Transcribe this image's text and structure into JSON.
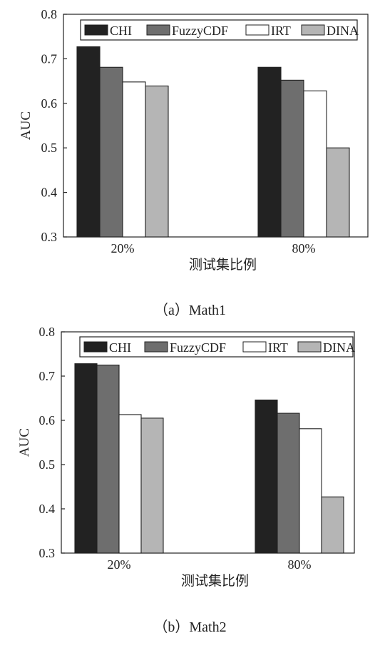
{
  "legend": {
    "items": [
      {
        "label": "CHI",
        "color": "#222222"
      },
      {
        "label": "FuzzyCDF",
        "color": "#6e6e6e"
      },
      {
        "label": "IRT",
        "color": "#ffffff"
      },
      {
        "label": "DINA",
        "color": "#b5b5b5"
      }
    ]
  },
  "chart_data": [
    {
      "type": "bar",
      "caption": "（a）Math1",
      "xlabel": "测试集比例",
      "ylabel": "AUC",
      "categories": [
        "20%",
        "80%"
      ],
      "ylim": [
        0.3,
        0.8
      ],
      "yticks": [
        "0.3",
        "0.4",
        "0.5",
        "0.6",
        "0.7",
        "0.8"
      ],
      "legend_position": "top-right",
      "grid": false,
      "series": [
        {
          "name": "CHI",
          "color": "#222222",
          "values": [
            0.727,
            0.681
          ]
        },
        {
          "name": "FuzzyCDF",
          "color": "#6e6e6e",
          "values": [
            0.681,
            0.652
          ]
        },
        {
          "name": "IRT",
          "color": "#ffffff",
          "values": [
            0.648,
            0.628
          ]
        },
        {
          "name": "DINA",
          "color": "#b5b5b5",
          "values": [
            0.639,
            0.5
          ]
        }
      ]
    },
    {
      "type": "bar",
      "caption": "（b）Math2",
      "xlabel": "测试集比例",
      "ylabel": "AUC",
      "categories": [
        "20%",
        "80%"
      ],
      "ylim": [
        0.3,
        0.8
      ],
      "yticks": [
        "0.3",
        "0.4",
        "0.5",
        "0.6",
        "0.7",
        "0.8"
      ],
      "legend_position": "top-right",
      "grid": false,
      "series": [
        {
          "name": "CHI",
          "color": "#222222",
          "values": [
            0.728,
            0.646
          ]
        },
        {
          "name": "FuzzyCDF",
          "color": "#6e6e6e",
          "values": [
            0.725,
            0.616
          ]
        },
        {
          "name": "IRT",
          "color": "#ffffff",
          "values": [
            0.613,
            0.581
          ]
        },
        {
          "name": "DINA",
          "color": "#b5b5b5",
          "values": [
            0.605,
            0.427
          ]
        }
      ]
    }
  ]
}
